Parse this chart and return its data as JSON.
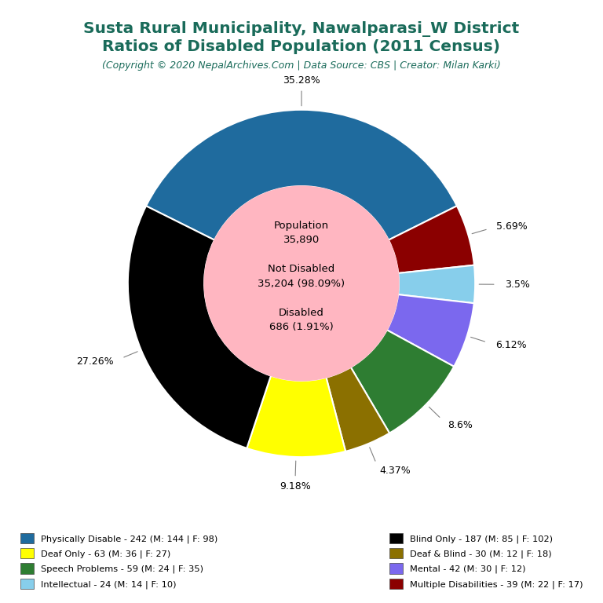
{
  "title_line1": "Susta Rural Municipality, Nawalparasi_W District",
  "title_line2": "Ratios of Disabled Population (2011 Census)",
  "subtitle": "(Copyright © 2020 NepalArchives.Com | Data Source: CBS | Creator: Milan Karki)",
  "title_color": "#1a6b5a",
  "subtitle_color": "#1a6b5a",
  "total_population": 35890,
  "not_disabled": 35204,
  "not_disabled_pct": 98.09,
  "disabled": 686,
  "disabled_pct": 1.91,
  "center_bg_color": "#ffb6c1",
  "donut_slices": [
    {
      "label": "Physically Disable - 242 (M: 144 | F: 98)",
      "value": 242,
      "pct": 35.28,
      "color": "#1f6b9e"
    },
    {
      "label": "Multiple Disabilities - 39 (M: 22 | F: 17)",
      "value": 39,
      "pct": 5.69,
      "color": "#8b0000"
    },
    {
      "label": "Intellectual - 24 (M: 14 | F: 10)",
      "value": 24,
      "pct": 3.5,
      "color": "#87ceeb"
    },
    {
      "label": "Mental - 42 (M: 30 | F: 12)",
      "value": 42,
      "pct": 6.12,
      "color": "#7b68ee"
    },
    {
      "label": "Speech Problems - 59 (M: 24 | F: 35)",
      "value": 59,
      "pct": 8.6,
      "color": "#2e7d32"
    },
    {
      "label": "Deaf & Blind - 30 (M: 12 | F: 18)",
      "value": 30,
      "pct": 4.37,
      "color": "#8b7000"
    },
    {
      "label": "Deaf Only - 63 (M: 36 | F: 27)",
      "value": 63,
      "pct": 9.18,
      "color": "#ffff00"
    },
    {
      "label": "Blind Only - 187 (M: 85 | F: 102)",
      "value": 187,
      "pct": 27.26,
      "color": "#000000"
    }
  ],
  "legend_items": [
    [
      "Physically Disable - 242 (M: 144 | F: 98)",
      "#1f6b9e"
    ],
    [
      "Deaf Only - 63 (M: 36 | F: 27)",
      "#ffff00"
    ],
    [
      "Speech Problems - 59 (M: 24 | F: 35)",
      "#2e7d32"
    ],
    [
      "Intellectual - 24 (M: 14 | F: 10)",
      "#87ceeb"
    ],
    [
      "Blind Only - 187 (M: 85 | F: 102)",
      "#000000"
    ],
    [
      "Deaf & Blind - 30 (M: 12 | F: 18)",
      "#8b7000"
    ],
    [
      "Mental - 42 (M: 30 | F: 12)",
      "#7b68ee"
    ],
    [
      "Multiple Disabilities - 39 (M: 22 | F: 17)",
      "#8b0000"
    ]
  ]
}
